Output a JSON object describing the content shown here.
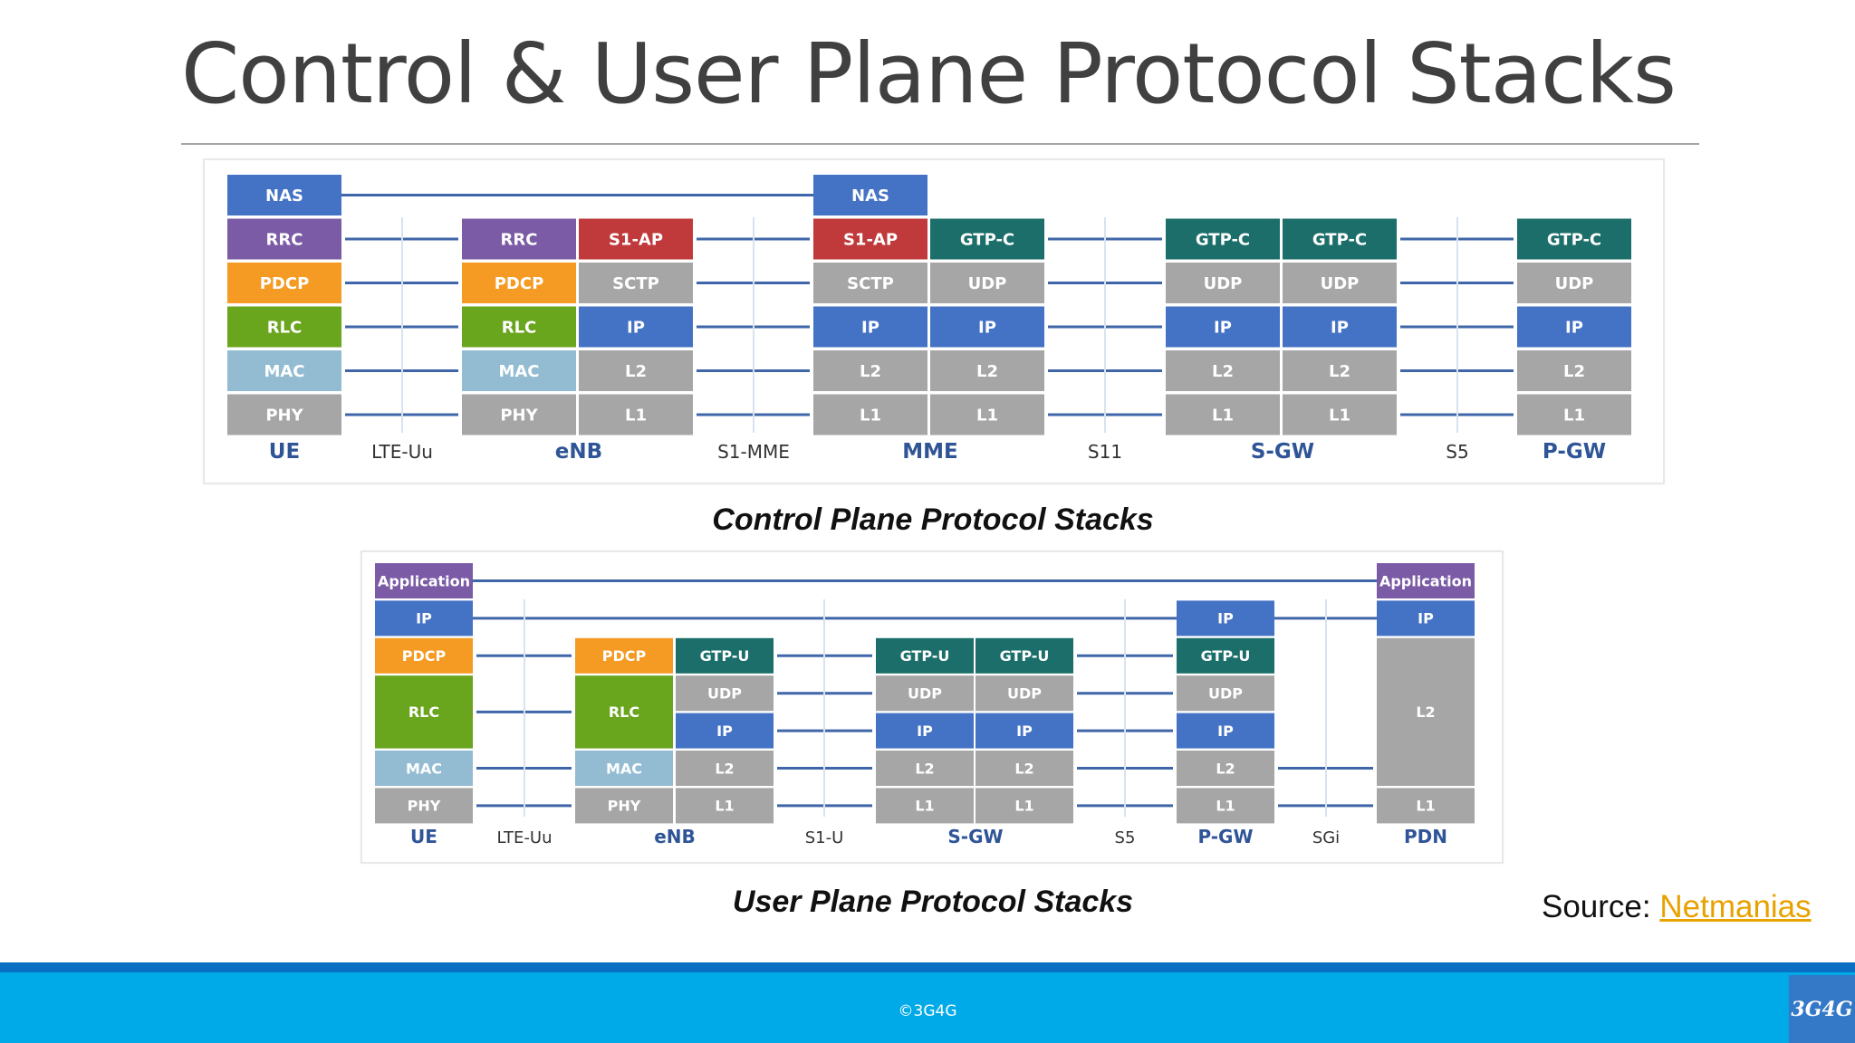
{
  "slide": {
    "title": "Control & User Plane Protocol Stacks",
    "source_label": "Source: ",
    "source_link": "Netmanias",
    "copyright": "©3G4G",
    "logo": "3G4G"
  },
  "colors": {
    "blue": "#4472c4",
    "purple": "#7b5ba6",
    "red": "#c0393b",
    "orange": "#f59a23",
    "green": "#6aa51e",
    "lightblue": "#93bcd3",
    "gray": "#a6a6a6",
    "teal": "#1b6e69",
    "line": "#3f66a8",
    "node": "#2f5597"
  },
  "control_plane": {
    "caption": "Control Plane Protocol Stacks",
    "nodes": [
      {
        "name": "UE",
        "columns": [
          [
            "NAS",
            "RRC",
            "PDCP",
            "RLC",
            "MAC",
            "PHY"
          ]
        ]
      },
      {
        "name": "eNB",
        "columns": [
          [
            "RRC",
            "PDCP",
            "RLC",
            "MAC",
            "PHY"
          ],
          [
            "S1-AP",
            "SCTP",
            "IP",
            "L2",
            "L1"
          ]
        ]
      },
      {
        "name": "MME",
        "columns": [
          [
            "NAS",
            "S1-AP",
            "SCTP",
            "IP",
            "L2",
            "L1"
          ],
          [
            "GTP-C",
            "UDP",
            "IP",
            "L2",
            "L1"
          ]
        ]
      },
      {
        "name": "S-GW",
        "columns": [
          [
            "GTP-C",
            "UDP",
            "IP",
            "L2",
            "L1"
          ],
          [
            "GTP-C",
            "UDP",
            "IP",
            "L2",
            "L1"
          ]
        ]
      },
      {
        "name": "P-GW",
        "columns": [
          [
            "GTP-C",
            "UDP",
            "IP",
            "L2",
            "L1"
          ]
        ]
      }
    ],
    "interfaces": [
      "LTE-Uu",
      "S1-MME",
      "S11",
      "S5"
    ]
  },
  "user_plane": {
    "caption": "User Plane Protocol Stacks",
    "nodes": [
      {
        "name": "UE",
        "columns": [
          [
            "Application",
            "IP",
            "PDCP",
            "RLC",
            "MAC",
            "PHY"
          ]
        ]
      },
      {
        "name": "eNB",
        "columns": [
          [
            "PDCP",
            "RLC",
            "MAC",
            "PHY"
          ],
          [
            "GTP-U",
            "UDP",
            "IP",
            "L2",
            "L1"
          ]
        ]
      },
      {
        "name": "S-GW",
        "columns": [
          [
            "GTP-U",
            "UDP",
            "IP",
            "L2",
            "L1"
          ],
          [
            "GTP-U",
            "UDP",
            "IP",
            "L2",
            "L1"
          ]
        ]
      },
      {
        "name": "P-GW",
        "columns": [
          [
            "IP",
            "GTP-U",
            "UDP",
            "IP",
            "L2",
            "L1"
          ]
        ]
      },
      {
        "name": "PDN",
        "columns": [
          [
            "Application",
            "IP",
            "L2",
            "L1"
          ]
        ]
      }
    ],
    "interfaces": [
      "LTE-Uu",
      "S1-U",
      "S5",
      "SGi"
    ]
  }
}
